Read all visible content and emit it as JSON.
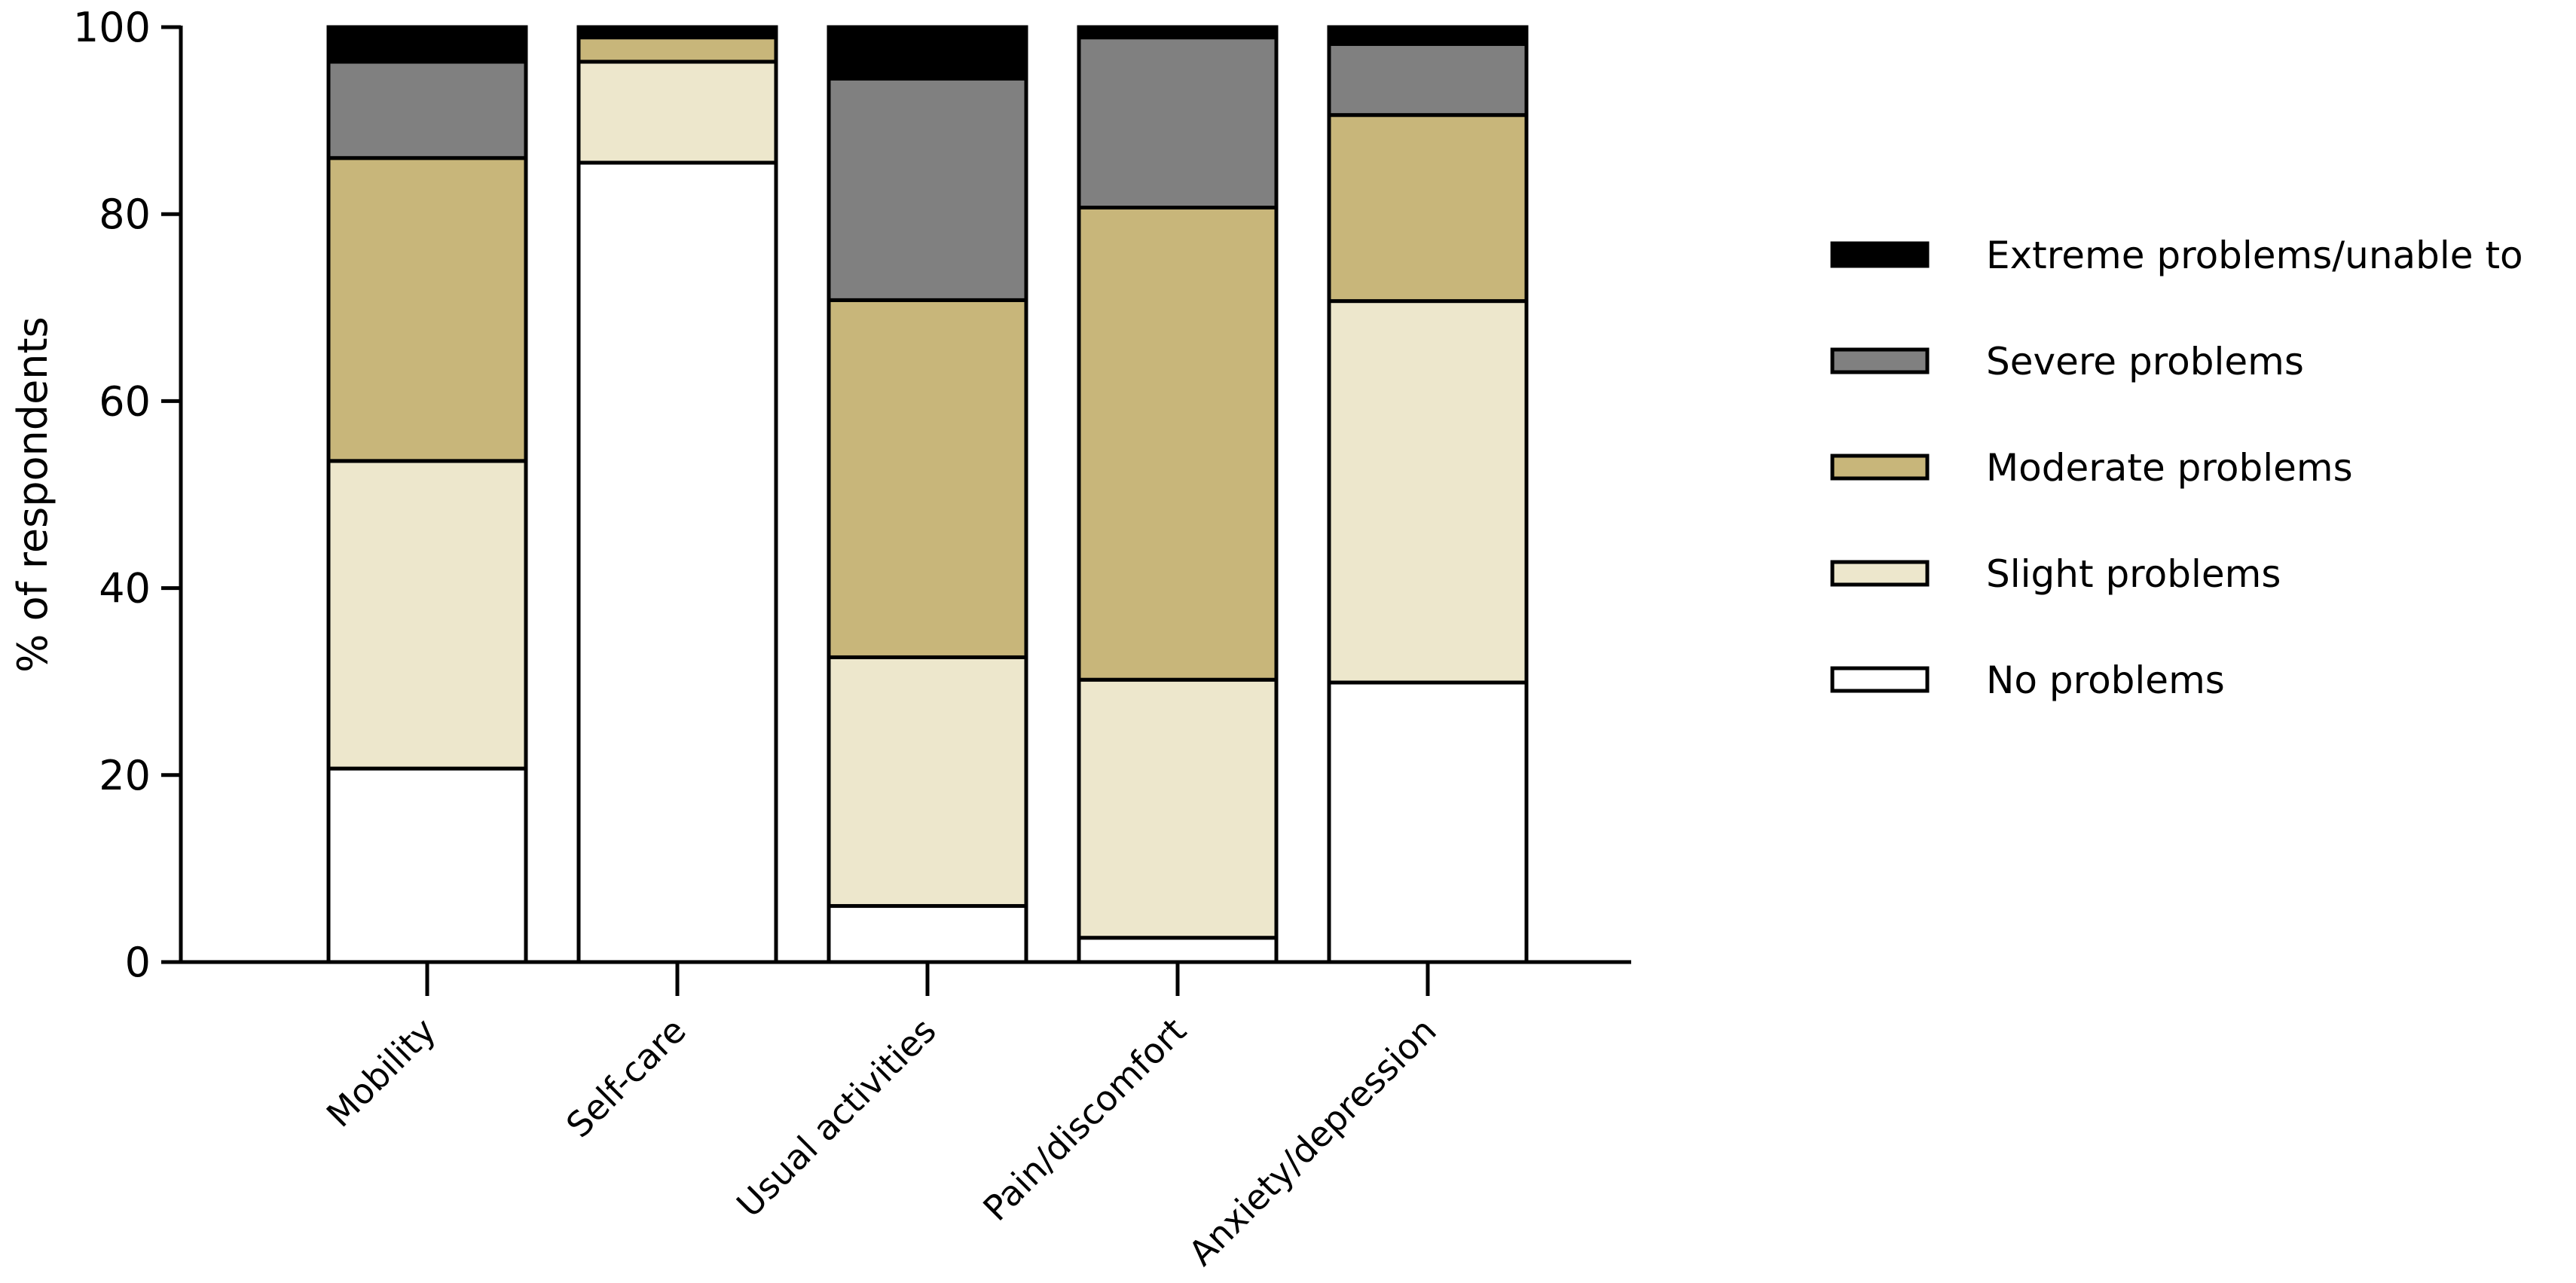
{
  "chart_data": {
    "type": "bar",
    "stacked": true,
    "title": "",
    "xlabel": "",
    "ylabel": "% of respondents",
    "ylim": [
      0,
      100
    ],
    "yticks": [
      0,
      20,
      40,
      60,
      80,
      100
    ],
    "grid": false,
    "legend_position": "right",
    "categories": [
      "Mobility",
      "Self-care",
      "Usual activities",
      "Pain/discomfort",
      "Anxiety/depression"
    ],
    "series": [
      {
        "name": "No problems",
        "color": "#ffffff",
        "values": [
          20.7,
          85.5,
          6.0,
          2.6,
          29.9
        ]
      },
      {
        "name": "Slight problems",
        "color": "#ede7cc",
        "values": [
          32.9,
          10.8,
          26.6,
          27.6,
          40.8
        ]
      },
      {
        "name": "Moderate problems",
        "color": "#c8b67a",
        "values": [
          32.4,
          2.6,
          38.2,
          50.5,
          19.9
        ]
      },
      {
        "name": "Severe problems",
        "color": "#808080",
        "values": [
          10.3,
          0.4,
          23.7,
          18.2,
          7.6
        ]
      },
      {
        "name": "Extreme problems/unable to",
        "color": "#000000",
        "values": [
          3.7,
          0.7,
          5.5,
          1.1,
          1.8
        ]
      }
    ]
  }
}
